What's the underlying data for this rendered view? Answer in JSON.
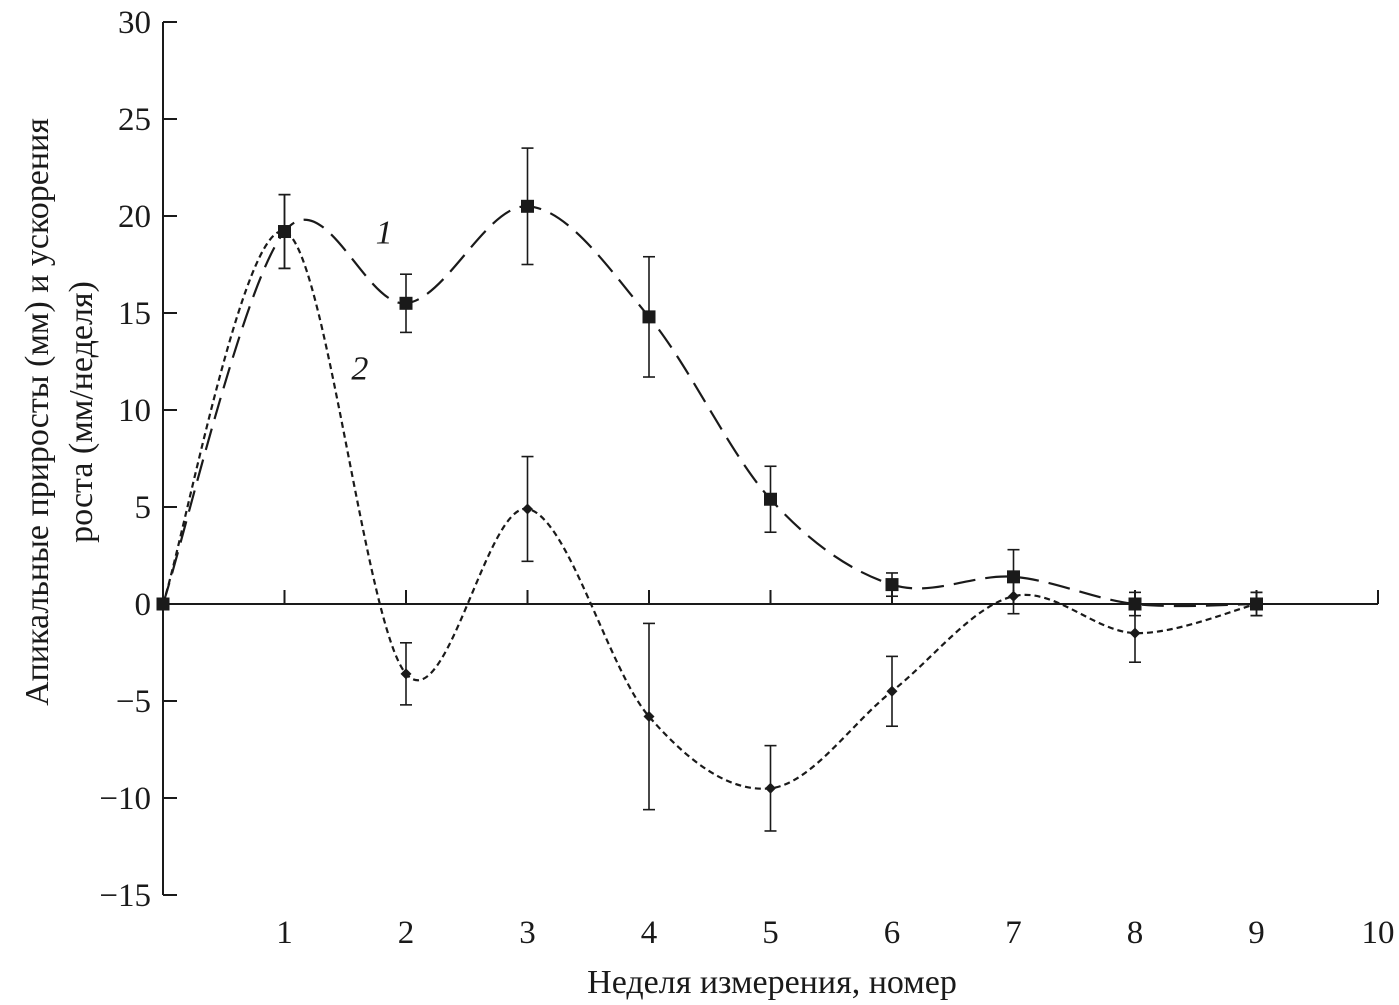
{
  "chart_data": {
    "type": "line",
    "xlabel": "Неделя измерения, номер",
    "ylabel": [
      "Апикальные приросты (мм) и ускорения",
      "роста (мм/неделя)"
    ],
    "xlim": [
      0,
      10
    ],
    "ylim": [
      -15,
      30
    ],
    "x_ticks": [
      1,
      2,
      3,
      4,
      5,
      6,
      7,
      8,
      9,
      10
    ],
    "y_ticks": [
      -15,
      -10,
      -5,
      0,
      5,
      10,
      15,
      20,
      25,
      30
    ],
    "y_tick_labels": [
      "−15",
      "−10",
      "−5",
      "0",
      "5",
      "10",
      "15",
      "20",
      "25",
      "30"
    ],
    "grid": false,
    "legend": "none",
    "series": [
      {
        "name": "1",
        "marker": "square",
        "line_style": "long-dash",
        "x": [
          0,
          1,
          2,
          3,
          4,
          5,
          6,
          7,
          8,
          9
        ],
        "y": [
          0,
          19.2,
          15.5,
          20.5,
          14.8,
          5.4,
          1.0,
          1.4,
          0,
          0
        ],
        "error": [
          0,
          1.9,
          1.5,
          3.0,
          3.1,
          1.7,
          0.6,
          1.4,
          0.6,
          0.6
        ]
      },
      {
        "name": "2",
        "marker": "diamond",
        "line_style": "short-dash",
        "x": [
          0,
          1,
          2,
          3,
          4,
          5,
          6,
          7,
          8,
          9
        ],
        "y": [
          0,
          19.2,
          -3.6,
          4.9,
          -5.8,
          -9.5,
          -4.5,
          0.4,
          -1.5,
          0
        ],
        "error": [
          0,
          1.9,
          1.6,
          2.7,
          4.8,
          2.2,
          1.8,
          0.9,
          1.5,
          0.6
        ]
      }
    ],
    "annotations": [
      {
        "text": "1",
        "x": 1.75,
        "y": 19.2
      },
      {
        "text": "2",
        "x": 1.55,
        "y": 12.2
      }
    ]
  }
}
